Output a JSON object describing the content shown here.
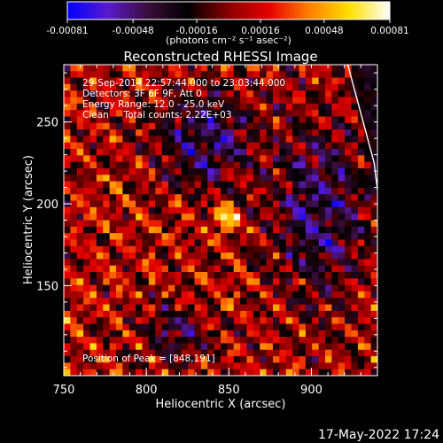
{
  "colorbar": {
    "tick_labels": [
      "-0.00081",
      "-0.00048",
      "-0.00016",
      "0.00016",
      "0.00048",
      "0.00081"
    ],
    "tick_values": [
      -0.00081,
      -0.00048,
      -0.00016,
      0.00016,
      0.00048,
      0.00081
    ],
    "range": [
      -0.00081,
      0.00081
    ],
    "unit_label": "(photons cm⁻² s⁻¹ asec⁻²)",
    "colors": [
      "#0000ff",
      "#5a1ad0",
      "#3a0d3a",
      "#000000",
      "#8b0000",
      "#e60000",
      "#ff8000",
      "#ffe000",
      "#ffffff"
    ]
  },
  "chart_data": {
    "type": "heatmap",
    "title": "Reconstructed RHESSI Image",
    "xlabel": "Heliocentric X (arcsec)",
    "ylabel": "Heliocentric Y (arcsec)",
    "xlim": [
      750,
      940
    ],
    "ylim": [
      95,
      285
    ],
    "x_ticks": [
      750,
      800,
      850,
      900
    ],
    "y_ticks": [
      150,
      200,
      250
    ],
    "x_tick_labels": [
      "750",
      "800",
      "850",
      "900"
    ],
    "y_tick_labels": [
      "150",
      "200",
      "250"
    ],
    "peak": {
      "x": 848,
      "y": 191
    },
    "annotations": {
      "time": "29-Sep-2014 22:57:44.000 to 23:03:44.000",
      "detectors": "Detectors: 3F 6F 9F, Att 0",
      "energy": "Energy Range: 12.0 - 25.0 keV",
      "clean": "Clean     Total counts: 2.22E+03",
      "peak_text": "Position of Peak = [848,191]"
    },
    "limb": [
      [
        922,
        285
      ],
      [
        938,
        225
      ],
      [
        941,
        200
      ]
    ]
  },
  "footer": {
    "date": "17-May-2022 17:24"
  }
}
